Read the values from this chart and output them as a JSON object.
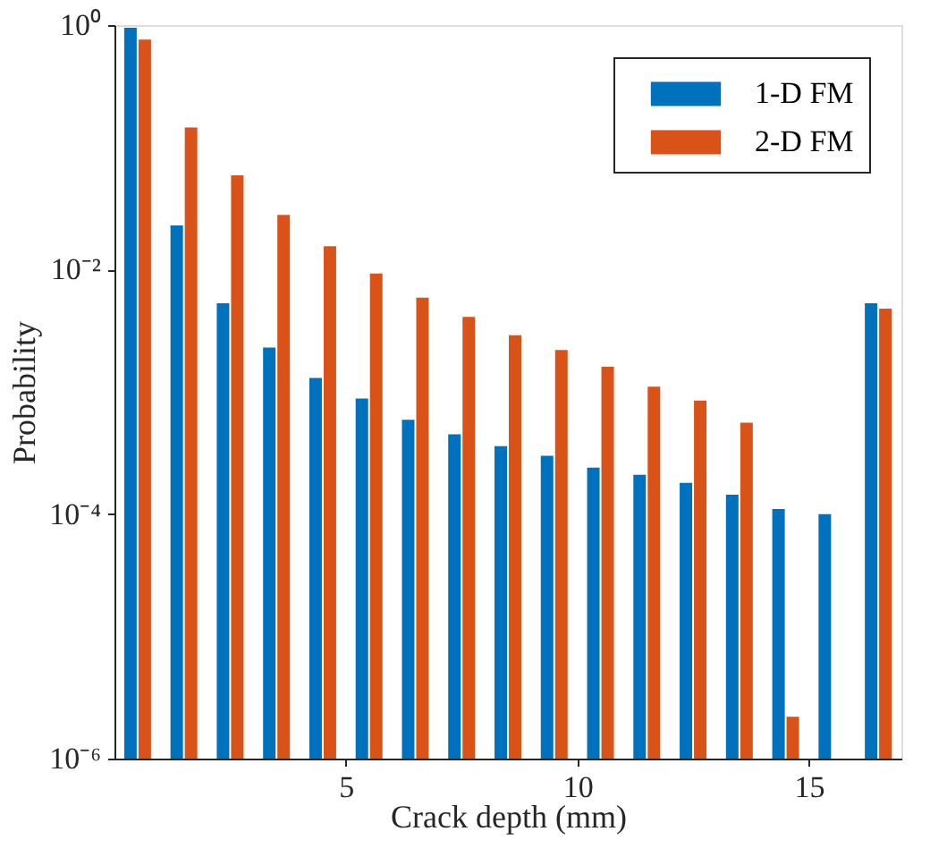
{
  "chart_data": {
    "type": "bar",
    "xlabel": "Crack depth (mm)",
    "ylabel": "Probability",
    "x": [
      0.5,
      1.5,
      2.5,
      3.5,
      4.5,
      5.5,
      6.5,
      7.5,
      8.5,
      9.5,
      10.5,
      11.5,
      12.5,
      13.5,
      14.5,
      15.5,
      16.5
    ],
    "series": [
      {
        "name": "1-D FM",
        "color": "#0072bd",
        "values": [
          0.95,
          0.023,
          0.0053,
          0.0023,
          0.0013,
          0.00088,
          0.00059,
          0.00045,
          0.00036,
          0.0003,
          0.00024,
          0.00021,
          0.00018,
          0.000144,
          0.00011,
          0.0001,
          0.0053
        ]
      },
      {
        "name": "2-D FM",
        "color": "#d95319",
        "values": [
          0.76,
          0.145,
          0.059,
          0.028,
          0.0155,
          0.0093,
          0.0059,
          0.0041,
          0.0029,
          0.0022,
          0.0016,
          0.0011,
          0.00085,
          0.00056,
          2.2e-06,
          null,
          0.0048
        ]
      }
    ],
    "xlim": [
      0,
      17
    ],
    "xticks": [
      5,
      10,
      15
    ],
    "ylim": [
      1e-06,
      1
    ],
    "yticks": [
      {
        "value": 1e-06,
        "label": "10⁻⁶"
      },
      {
        "value": 0.0001,
        "label": "10⁻⁴"
      },
      {
        "value": 0.01,
        "label": "10⁻²"
      },
      {
        "value": 1,
        "label": "10⁰"
      }
    ],
    "log": true,
    "grid": false,
    "legend": "top right"
  }
}
